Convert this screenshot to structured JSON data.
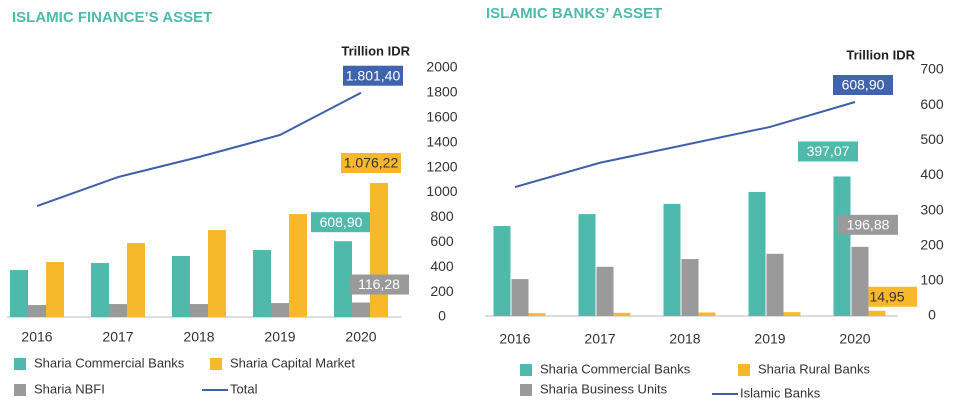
{
  "chart_data": [
    {
      "type": "bar",
      "title": "ISLAMIC FINANCE’S ASSET",
      "unit": "Trillion IDR",
      "categories": [
        "2016",
        "2017",
        "2018",
        "2019",
        "2020"
      ],
      "series": [
        {
          "name": "Sharia Commercial Banks",
          "color": "#4fb9ac",
          "values": [
            377,
            434,
            490,
            538,
            608.9
          ],
          "value_labels": [
            null,
            null,
            null,
            null,
            "608,90"
          ]
        },
        {
          "name": "Sharia Capital Market",
          "color": "#f7b92b",
          "values": [
            442,
            594,
            699,
            827,
            1076.22
          ],
          "value_labels": [
            null,
            null,
            null,
            null,
            "1.076,22"
          ]
        },
        {
          "name": "Sharia NBFI",
          "color": "#9a9a9a",
          "values": [
            96,
            104,
            104,
            112,
            116.28
          ],
          "value_labels": [
            null,
            null,
            null,
            null,
            "116,28"
          ]
        },
        {
          "name": "Total",
          "color": "#3f5fa8",
          "type": "line",
          "values": [
            891,
            1124,
            1285,
            1462,
            1801.4
          ],
          "value_labels": [
            null,
            null,
            null,
            null,
            "1.801,40"
          ]
        }
      ],
      "ylim": [
        0,
        2000
      ],
      "yticks": [
        0,
        200,
        400,
        600,
        800,
        1000,
        1200,
        1400,
        1600,
        1800,
        2000
      ]
    },
    {
      "type": "bar",
      "title": "ISLAMIC BANKS’ ASSET",
      "unit": "Trillion IDR",
      "categories": [
        "2016",
        "2017",
        "2018",
        "2019",
        "2020"
      ],
      "series": [
        {
          "name": "Sharia Commercial Banks",
          "color": "#4fb9ac",
          "values": [
            256,
            290,
            319,
            353,
            397.07
          ],
          "value_labels": [
            null,
            null,
            null,
            null,
            "397,07"
          ]
        },
        {
          "name": "Sharia Rural Banks",
          "color": "#f7b92b",
          "values": [
            8,
            9,
            10,
            11,
            14.95
          ],
          "value_labels": [
            null,
            null,
            null,
            null,
            "14,95"
          ]
        },
        {
          "name": "Sharia Business Units",
          "color": "#9a9a9a",
          "values": [
            105,
            140,
            162,
            177,
            196.88
          ],
          "value_labels": [
            null,
            null,
            null,
            null,
            "196,88"
          ]
        },
        {
          "name": "Islamic Banks",
          "color": "#3f5fa8",
          "type": "line",
          "values": [
            367,
            436,
            487,
            538,
            608.9
          ],
          "value_labels": [
            null,
            null,
            null,
            null,
            "608,90"
          ]
        }
      ],
      "ylim": [
        0,
        700
      ],
      "yticks": [
        0,
        100,
        200,
        300,
        400,
        500,
        600,
        700
      ]
    }
  ]
}
